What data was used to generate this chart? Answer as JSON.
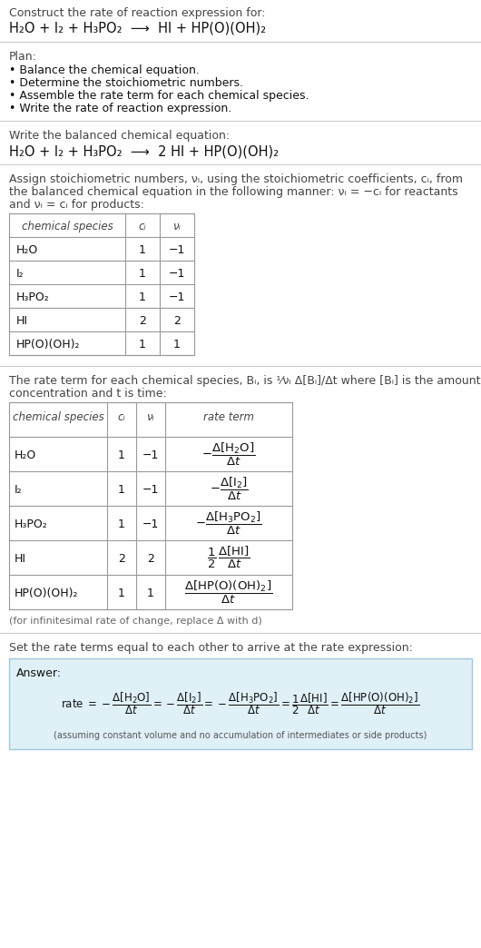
{
  "title_line1": "Construct the rate of reaction expression for:",
  "reaction_unbalanced": "H₂O + I₂ + H₃PO₂  ⟶  HI + HP(O)(OH)₂",
  "plan_header": "Plan:",
  "plan_items": [
    "• Balance the chemical equation.",
    "• Determine the stoichiometric numbers.",
    "• Assemble the rate term for each chemical species.",
    "• Write the rate of reaction expression."
  ],
  "balanced_header": "Write the balanced chemical equation:",
  "reaction_balanced": "H₂O + I₂ + H₃PO₂  ⟶  2 HI + HP(O)(OH)₂",
  "stoich_header1": "Assign stoichiometric numbers, νᵢ, using the stoichiometric coefficients, cᵢ, from",
  "stoich_header2": "the balanced chemical equation in the following manner: νᵢ = −cᵢ for reactants",
  "stoich_header3": "and νᵢ = cᵢ for products:",
  "table1_col_headers": [
    "chemical species",
    "cᵢ",
    "νᵢ"
  ],
  "table1_rows": [
    [
      "H₂O",
      "1",
      "−1"
    ],
    [
      "I₂",
      "1",
      "−1"
    ],
    [
      "H₃PO₂",
      "1",
      "−1"
    ],
    [
      "HI",
      "2",
      "2"
    ],
    [
      "HP(O)(OH)₂",
      "1",
      "1"
    ]
  ],
  "rate_header1": "The rate term for each chemical species, Bᵢ, is ¹⁄νᵢ Δ[Bᵢ]/Δt where [Bᵢ] is the amount",
  "rate_header2": "concentration and t is time:",
  "table2_col_headers": [
    "chemical species",
    "cᵢ",
    "νᵢ",
    "rate term"
  ],
  "table2_rows": [
    [
      "H₂O",
      "1",
      "−1"
    ],
    [
      "I₂",
      "1",
      "−1"
    ],
    [
      "H₃PO₂",
      "1",
      "−1"
    ],
    [
      "HI",
      "2",
      "2"
    ],
    [
      "HP(O)(OH)₂",
      "1",
      "1"
    ]
  ],
  "infinitesimal_note": "(for infinitesimal rate of change, replace Δ with d)",
  "set_rate_header": "Set the rate terms equal to each other to arrive at the rate expression:",
  "answer_label": "Answer:",
  "answer_box_color": "#dff0f7",
  "answer_border_color": "#a0c8dc",
  "bg_color": "#ffffff",
  "text_color": "#111111",
  "gray_text": "#444444",
  "table_line_color": "#999999",
  "font_size": 9.0
}
